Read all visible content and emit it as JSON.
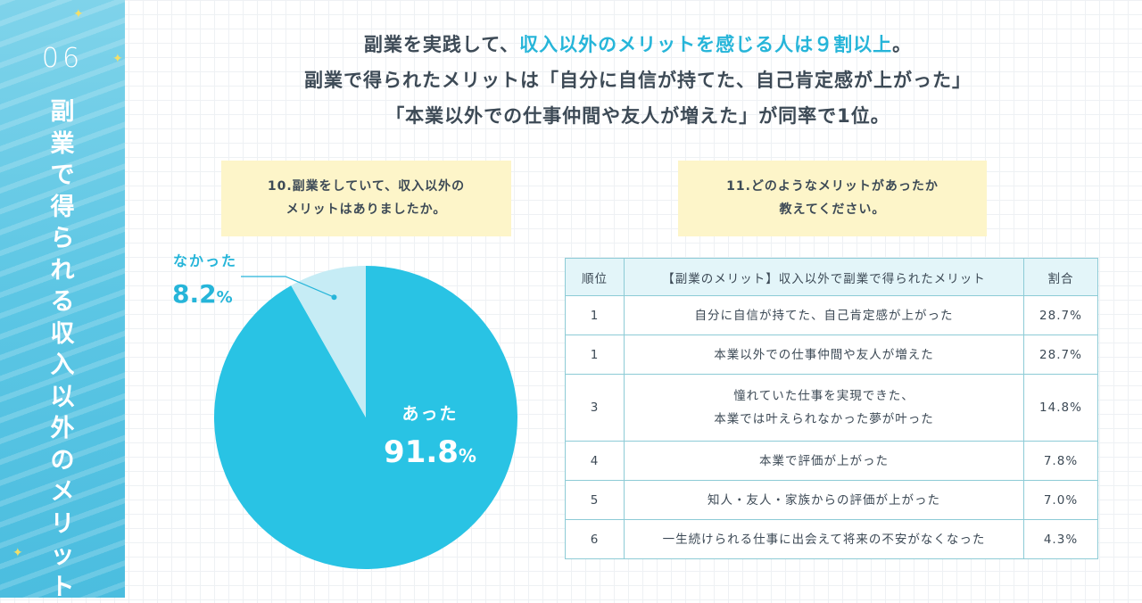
{
  "sidebar": {
    "number": "06",
    "title": "副業で得られる収入以外のメリット"
  },
  "headline": {
    "line1_a": "副業を実践して、",
    "line1_b": "収入以外のメリットを感じる人は９割以上",
    "line1_c": "。",
    "line2": "副業で得られたメリットは「自分に自信が持てた、自己肯定感が上がった」",
    "line3": "「本業以外での仕事仲間や友人が増えた」が同率で1位。"
  },
  "colors": {
    "accent": "#26b5d9",
    "pie_main": "#29c3e4",
    "pie_minor": "#c6ecf5",
    "question_bg": "#fdf5c9",
    "table_header_bg": "#e3f5f9",
    "table_border": "#8dcbd6"
  },
  "chart_data": [
    {
      "type": "pie",
      "title": "10.副業をしていて、収入以外のメリットはありましたか。",
      "title_lines": [
        "10.副業をしていて、収入以外の",
        "メリットはありましたか。"
      ],
      "slices": [
        {
          "label": "あった",
          "value": 91.8,
          "value_text": "91.8",
          "unit": "%"
        },
        {
          "label": "なかった",
          "value": 8.2,
          "value_text": "8.2",
          "unit": "%"
        }
      ]
    },
    {
      "type": "table",
      "title": "11.どのようなメリットがあったか教えてください。",
      "title_lines": [
        "11.どのようなメリットがあったか",
        "教えてください。"
      ],
      "columns": [
        "順位",
        "【副業のメリット】収入以外で副業で得られたメリット",
        "割合"
      ],
      "rows": [
        {
          "rank": "1",
          "merit": [
            "自分に自信が持てた、自己肯定感が上がった"
          ],
          "pct": "28.7%"
        },
        {
          "rank": "1",
          "merit": [
            "本業以外での仕事仲間や友人が増えた"
          ],
          "pct": "28.7%"
        },
        {
          "rank": "3",
          "merit": [
            "憧れていた仕事を実現できた、",
            "本業では叶えられなかった夢が叶った"
          ],
          "pct": "14.8%"
        },
        {
          "rank": "4",
          "merit": [
            "本業で評価が上がった"
          ],
          "pct": "7.8%"
        },
        {
          "rank": "5",
          "merit": [
            "知人・友人・家族からの評価が上がった"
          ],
          "pct": "7.0%"
        },
        {
          "rank": "6",
          "merit": [
            "一生続けられる仕事に出会えて将来の不安がなくなった"
          ],
          "pct": "4.3%"
        }
      ]
    }
  ]
}
